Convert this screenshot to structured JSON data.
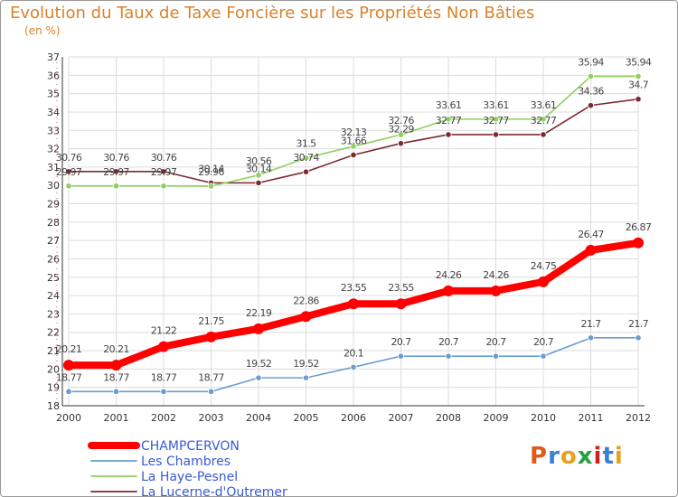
{
  "header": {
    "title": "Evolution du Taux de Taxe Foncière sur les Propriétés Non Bâties",
    "unit": "(en %)"
  },
  "logo": {
    "text": "Proxiti",
    "colors": [
      "#e05a1a",
      "#3a7fd0",
      "#e8a020",
      "#2aa040",
      "#d02020",
      "#3a7fd0",
      "#e8a020"
    ]
  },
  "chart_data": {
    "type": "line",
    "title": "Evolution du Taux de Taxe Foncière sur les Propriétés Non Bâties",
    "ylabel": "(en %)",
    "xlabel": "",
    "ylim": [
      18,
      37
    ],
    "yticks": [
      18,
      19,
      20,
      21,
      22,
      23,
      24,
      25,
      26,
      27,
      28,
      29,
      30,
      31,
      32,
      33,
      34,
      35,
      36,
      37
    ],
    "x": [
      "2000",
      "2001",
      "2002",
      "2003",
      "2004",
      "2005",
      "2006",
      "2007",
      "2008",
      "2009",
      "2010",
      "2011",
      "2012"
    ],
    "grid": true,
    "legend_position": "bottom-left",
    "series": [
      {
        "name": "CHAMPCERVON",
        "color": "#ff0000",
        "values": [
          20.21,
          20.21,
          21.22,
          21.75,
          22.19,
          22.86,
          23.55,
          23.55,
          24.26,
          24.26,
          24.75,
          26.47,
          26.87
        ],
        "labels": [
          "20.21",
          "20.21",
          "21.22",
          "21.75",
          "22.19",
          "22.86",
          "23.55",
          "23.55",
          "24.26",
          "24.26",
          "24.75",
          "26.47",
          "26.87"
        ]
      },
      {
        "name": "Les Chambres",
        "color": "#6a9cd0",
        "values": [
          18.77,
          18.77,
          18.77,
          18.77,
          19.52,
          19.52,
          20.1,
          20.7,
          20.7,
          20.7,
          20.7,
          21.7,
          21.7
        ],
        "labels": [
          "18.77",
          "18.77",
          "18.77",
          "18.77",
          "19.52",
          "19.52",
          "20.1",
          "20.7",
          "20.7",
          "20.7",
          "20.7",
          "21.7",
          "21.7"
        ]
      },
      {
        "name": "La Haye-Pesnel",
        "color": "#8fd060",
        "values": [
          29.97,
          29.97,
          29.97,
          29.96,
          30.56,
          31.5,
          32.13,
          32.76,
          33.61,
          33.61,
          33.61,
          35.94,
          35.94
        ],
        "labels": [
          "29.97",
          "29.97",
          "29.97",
          "29.96",
          "30.56",
          "31.5",
          "32.13",
          "32.76",
          "33.61",
          "33.61",
          "33.61",
          "35.94",
          "35.94"
        ]
      },
      {
        "name": "La Lucerne-d'Outremer",
        "color": "#7a2a30",
        "values": [
          30.76,
          30.76,
          30.76,
          30.14,
          30.14,
          30.74,
          31.66,
          32.29,
          32.77,
          32.77,
          32.77,
          34.36,
          34.7
        ],
        "labels": [
          "30.76",
          "30.76",
          "30.76",
          "30.14",
          "30.14",
          "30.74",
          "31.66",
          "32.29",
          "32.77",
          "32.77",
          "32.77",
          "34.36",
          "34.7"
        ]
      }
    ]
  }
}
